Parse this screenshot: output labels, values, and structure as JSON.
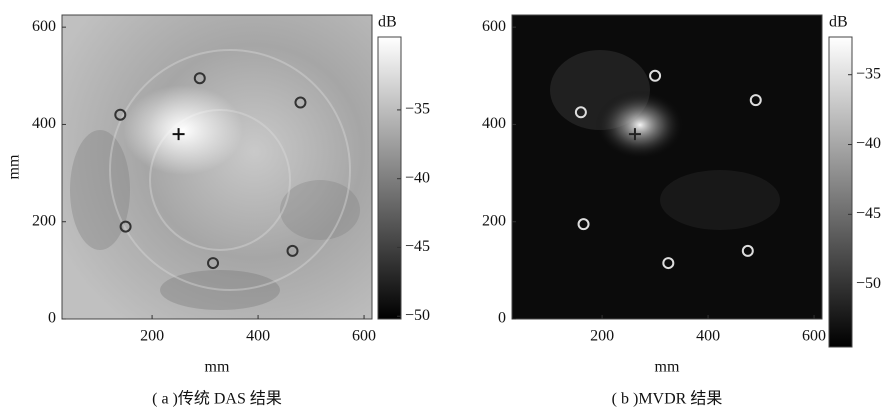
{
  "chart_data": [
    {
      "type": "heatmap",
      "caption": "( a )传统 DAS 结果",
      "x_label": "mm",
      "y_label": "mm",
      "xlim": [
        30,
        615
      ],
      "ylim": [
        0,
        625
      ],
      "xticks": [
        200,
        400,
        600
      ],
      "yticks": [
        0,
        200,
        400,
        600
      ],
      "sensors": {
        "x": [
          290,
          140,
          480,
          150,
          315,
          465
        ],
        "y": [
          495,
          420,
          445,
          190,
          115,
          140
        ],
        "color": "#333333"
      },
      "source": {
        "x": [
          250
        ],
        "y": [
          380
        ],
        "color": "#111111"
      },
      "colorbar": {
        "label": "dB",
        "lim": [
          -50.2,
          -29.7
        ],
        "ticks": [
          {
            "value": -35,
            "label": "−35"
          },
          {
            "value": -40,
            "label": "−40"
          },
          {
            "value": -45,
            "label": "−45"
          },
          {
            "value": -50,
            "label": "−50"
          }
        ]
      }
    },
    {
      "type": "heatmap",
      "caption": "( b )MVDR 结果",
      "x_label": "mm",
      "xlim": [
        30,
        615
      ],
      "ylim": [
        0,
        625
      ],
      "xticks": [
        200,
        400,
        600
      ],
      "yticks": [
        0,
        200,
        400,
        600
      ],
      "sensors": {
        "x": [
          300,
          160,
          490,
          165,
          325,
          475
        ],
        "y": [
          500,
          425,
          450,
          195,
          115,
          140
        ],
        "color": "#dddddd"
      },
      "source": {
        "x": [
          262
        ],
        "y": [
          380
        ],
        "color": "#222222"
      },
      "colorbar": {
        "label": "dB",
        "lim": [
          -54.5,
          -32.3
        ],
        "ticks": [
          {
            "value": -35,
            "label": "−35"
          },
          {
            "value": -40,
            "label": "−40"
          },
          {
            "value": -45,
            "label": "−45"
          },
          {
            "value": -50,
            "label": "−50"
          }
        ]
      }
    }
  ]
}
